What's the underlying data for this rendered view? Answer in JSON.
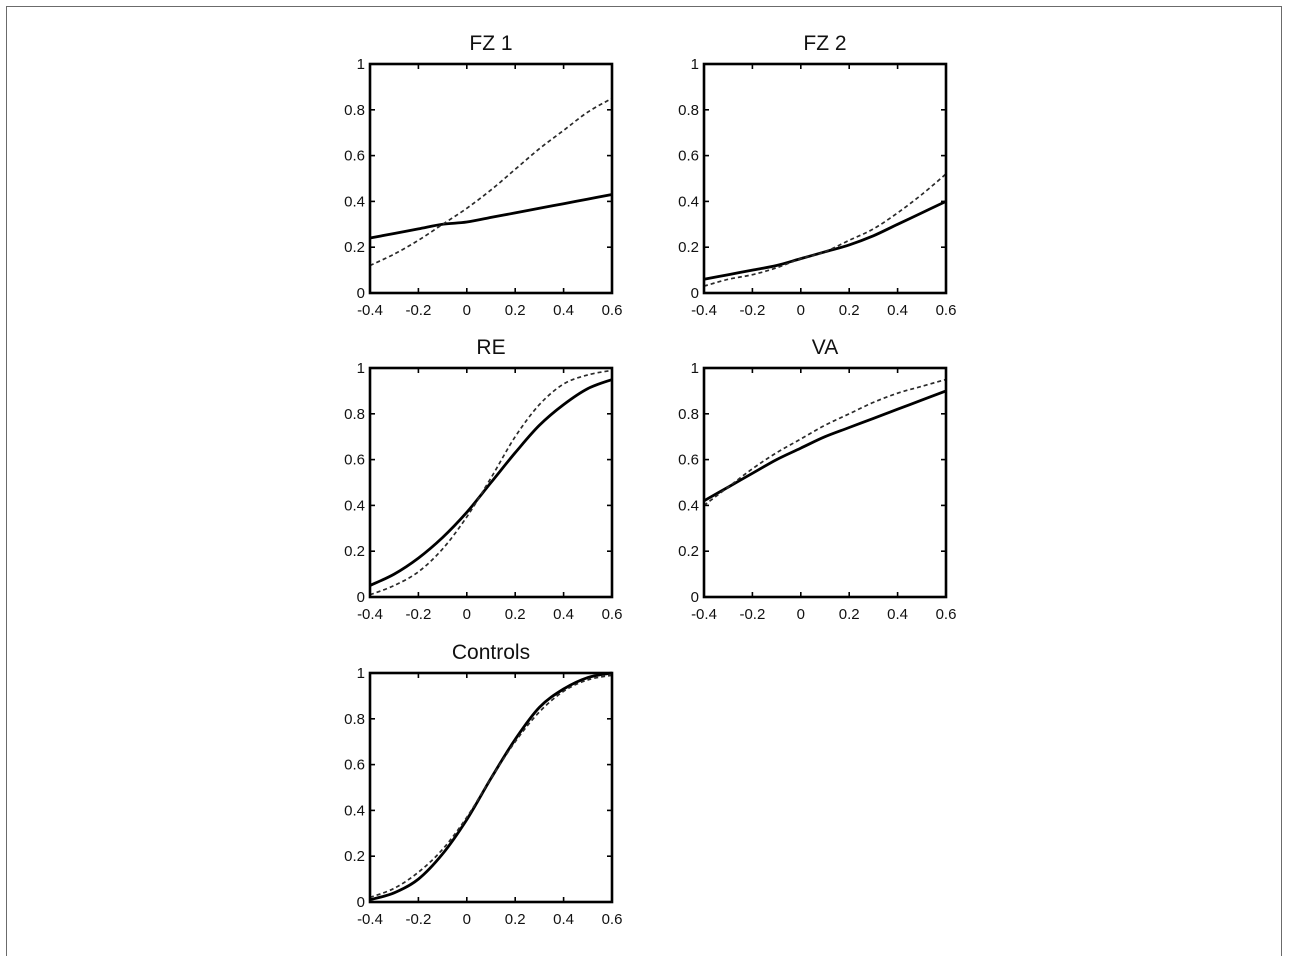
{
  "chart_data": [
    {
      "type": "line",
      "title": "FZ 1",
      "xlim": [
        -0.4,
        0.6
      ],
      "ylim": [
        0,
        1
      ],
      "xticks": [
        "-0.4",
        "-0.2",
        "0",
        "0.2",
        "0.4",
        "0.6"
      ],
      "yticks": [
        "0",
        "0.2",
        "0.4",
        "0.6",
        "0.8",
        "1"
      ],
      "grid": false,
      "series": [
        {
          "style": "solid",
          "x": [
            -0.4,
            -0.3,
            -0.2,
            -0.1,
            0,
            0.1,
            0.2,
            0.3,
            0.4,
            0.5,
            0.6
          ],
          "y": [
            0.24,
            0.26,
            0.28,
            0.3,
            0.31,
            0.33,
            0.35,
            0.37,
            0.39,
            0.41,
            0.43
          ]
        },
        {
          "style": "dashed",
          "x": [
            -0.4,
            -0.3,
            -0.2,
            -0.1,
            0,
            0.1,
            0.2,
            0.3,
            0.4,
            0.5,
            0.6
          ],
          "y": [
            0.12,
            0.17,
            0.23,
            0.3,
            0.37,
            0.45,
            0.54,
            0.63,
            0.71,
            0.79,
            0.85
          ]
        }
      ]
    },
    {
      "type": "line",
      "title": "FZ 2",
      "xlim": [
        -0.4,
        0.6
      ],
      "ylim": [
        0,
        1
      ],
      "xticks": [
        "-0.4",
        "-0.2",
        "0",
        "0.2",
        "0.4",
        "0.6"
      ],
      "yticks": [
        "0",
        "0.2",
        "0.4",
        "0.6",
        "0.8",
        "1"
      ],
      "grid": false,
      "series": [
        {
          "style": "solid",
          "x": [
            -0.4,
            -0.3,
            -0.2,
            -0.1,
            0,
            0.1,
            0.2,
            0.3,
            0.4,
            0.5,
            0.6
          ],
          "y": [
            0.06,
            0.08,
            0.1,
            0.12,
            0.15,
            0.18,
            0.21,
            0.25,
            0.3,
            0.35,
            0.4
          ]
        },
        {
          "style": "dashed",
          "x": [
            -0.4,
            -0.3,
            -0.2,
            -0.1,
            0,
            0.1,
            0.2,
            0.3,
            0.4,
            0.5,
            0.6
          ],
          "y": [
            0.03,
            0.06,
            0.08,
            0.11,
            0.15,
            0.18,
            0.23,
            0.28,
            0.35,
            0.43,
            0.52
          ]
        }
      ]
    },
    {
      "type": "line",
      "title": "RE",
      "xlim": [
        -0.4,
        0.6
      ],
      "ylim": [
        0,
        1
      ],
      "xticks": [
        "-0.4",
        "-0.2",
        "0",
        "0.2",
        "0.4",
        "0.6"
      ],
      "yticks": [
        "0",
        "0.2",
        "0.4",
        "0.6",
        "0.8",
        "1"
      ],
      "grid": false,
      "series": [
        {
          "style": "solid",
          "x": [
            -0.4,
            -0.3,
            -0.2,
            -0.1,
            0,
            0.1,
            0.2,
            0.3,
            0.4,
            0.5,
            0.6
          ],
          "y": [
            0.05,
            0.1,
            0.17,
            0.26,
            0.37,
            0.5,
            0.63,
            0.75,
            0.84,
            0.91,
            0.95
          ]
        },
        {
          "style": "dashed",
          "x": [
            -0.4,
            -0.3,
            -0.2,
            -0.1,
            0,
            0.1,
            0.2,
            0.3,
            0.4,
            0.5,
            0.6
          ],
          "y": [
            0.01,
            0.05,
            0.11,
            0.21,
            0.35,
            0.52,
            0.7,
            0.84,
            0.93,
            0.97,
            0.99
          ]
        }
      ]
    },
    {
      "type": "line",
      "title": "VA",
      "xlim": [
        -0.4,
        0.6
      ],
      "ylim": [
        0,
        1
      ],
      "xticks": [
        "-0.4",
        "-0.2",
        "0",
        "0.2",
        "0.4",
        "0.6"
      ],
      "yticks": [
        "0",
        "0.2",
        "0.4",
        "0.6",
        "0.8",
        "1"
      ],
      "grid": false,
      "series": [
        {
          "style": "solid",
          "x": [
            -0.4,
            -0.3,
            -0.2,
            -0.1,
            0,
            0.1,
            0.2,
            0.3,
            0.4,
            0.5,
            0.6
          ],
          "y": [
            0.42,
            0.48,
            0.54,
            0.6,
            0.65,
            0.7,
            0.74,
            0.78,
            0.82,
            0.86,
            0.9
          ]
        },
        {
          "style": "dashed",
          "x": [
            -0.4,
            -0.3,
            -0.2,
            -0.1,
            0,
            0.1,
            0.2,
            0.3,
            0.4,
            0.5,
            0.6
          ],
          "y": [
            0.4,
            0.48,
            0.56,
            0.63,
            0.69,
            0.75,
            0.8,
            0.85,
            0.89,
            0.92,
            0.95
          ]
        }
      ]
    },
    {
      "type": "line",
      "title": "Controls",
      "xlim": [
        -0.4,
        0.6
      ],
      "ylim": [
        0,
        1
      ],
      "xticks": [
        "-0.4",
        "-0.2",
        "0",
        "0.2",
        "0.4",
        "0.6"
      ],
      "yticks": [
        "0",
        "0.2",
        "0.4",
        "0.6",
        "0.8",
        "1"
      ],
      "grid": false,
      "series": [
        {
          "style": "solid",
          "x": [
            -0.4,
            -0.3,
            -0.2,
            -0.1,
            0,
            0.1,
            0.2,
            0.3,
            0.4,
            0.5,
            0.6
          ],
          "y": [
            0.01,
            0.04,
            0.1,
            0.21,
            0.36,
            0.54,
            0.71,
            0.85,
            0.93,
            0.98,
            1.0
          ]
        },
        {
          "style": "dashed",
          "x": [
            -0.4,
            -0.3,
            -0.2,
            -0.1,
            0,
            0.1,
            0.2,
            0.3,
            0.4,
            0.5,
            0.6
          ],
          "y": [
            0.02,
            0.06,
            0.13,
            0.23,
            0.37,
            0.54,
            0.7,
            0.83,
            0.92,
            0.97,
            0.99
          ]
        }
      ]
    }
  ]
}
